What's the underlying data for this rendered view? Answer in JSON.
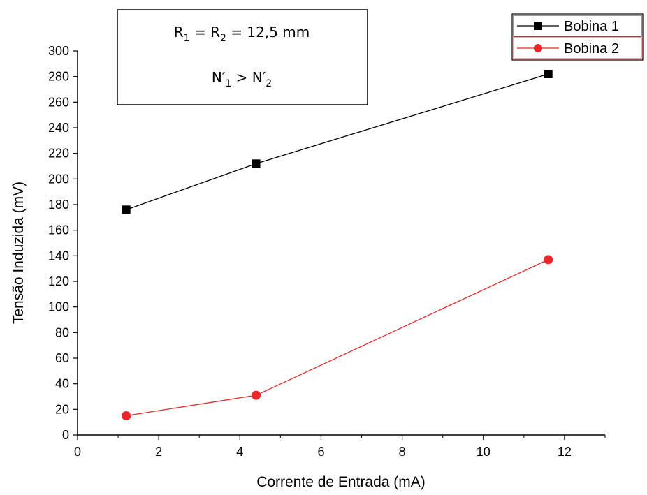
{
  "chart_data": {
    "type": "line",
    "xlabel": "Corrente de Entrada (mA)",
    "ylabel": "Tensão Induzida (mV)",
    "xlim": [
      0,
      13
    ],
    "ylim": [
      0,
      300
    ],
    "xticks": [
      0,
      2,
      4,
      6,
      8,
      10,
      12
    ],
    "yticks": [
      0,
      20,
      40,
      60,
      80,
      100,
      120,
      140,
      160,
      180,
      200,
      220,
      240,
      260,
      280,
      300
    ],
    "grid": false,
    "legend_position": "top-right",
    "series": [
      {
        "name": "Bobina 1",
        "color": "#000000",
        "marker": "square",
        "x": [
          1.2,
          4.4,
          11.6
        ],
        "y": [
          176,
          212,
          282
        ]
      },
      {
        "name": "Bobina 2",
        "color": "#e8262b",
        "marker": "circle",
        "x": [
          1.2,
          4.4,
          11.6
        ],
        "y": [
          15,
          31,
          137
        ]
      }
    ],
    "annotation": {
      "line1": {
        "R": "R",
        "s1": "1",
        "eq1": " = R",
        "s2": "2",
        "rest": " = 12,5 mm"
      },
      "line2": {
        "N": "N′",
        "s1": "1",
        "gt": " > N′",
        "s2": "2"
      }
    }
  }
}
